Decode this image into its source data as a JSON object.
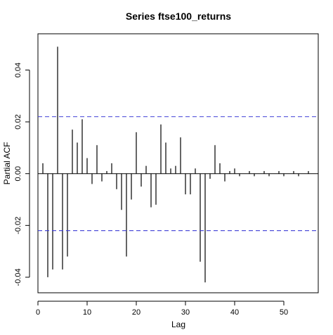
{
  "chart_data": {
    "type": "bar",
    "title": "Series  ftse100_returns",
    "xlabel": "Lag",
    "ylabel": "Partial ACF",
    "xlim": [
      0,
      57
    ],
    "ylim": [
      -0.046,
      0.054
    ],
    "x_ticks": [
      0,
      10,
      20,
      30,
      40,
      50
    ],
    "y_ticks": [
      -0.04,
      -0.02,
      0.0,
      0.02,
      0.04
    ],
    "y_tick_labels": [
      "-0.04",
      "-0.02",
      "0.00",
      "0.02",
      "0.04"
    ],
    "x": [
      1,
      2,
      3,
      4,
      5,
      6,
      7,
      8,
      9,
      10,
      11,
      12,
      13,
      14,
      15,
      16,
      17,
      18,
      19,
      20,
      21,
      22,
      23,
      24,
      25,
      26,
      27,
      28,
      29,
      30,
      31,
      32,
      33,
      34,
      35,
      36,
      37,
      38,
      39,
      40,
      41,
      42,
      43,
      44,
      45,
      46,
      47,
      48,
      49,
      50,
      51,
      52,
      53,
      54,
      55
    ],
    "values": [
      0.004,
      -0.04,
      -0.037,
      0.049,
      -0.037,
      -0.032,
      0.017,
      0.012,
      0.021,
      0.006,
      -0.004,
      0.011,
      -0.003,
      0.001,
      0.004,
      -0.006,
      -0.014,
      -0.032,
      -0.01,
      0.016,
      -0.005,
      0.003,
      -0.013,
      -0.012,
      0.019,
      0.012,
      0.002,
      0.003,
      0.014,
      -0.008,
      -0.008,
      0.002,
      -0.034,
      -0.042,
      -0.002,
      0.011,
      0.004,
      -0.003,
      0.001,
      0.002,
      -0.001,
      0.0,
      0.001,
      -0.001,
      0.0,
      0.001,
      -0.001,
      0.0,
      0.001,
      -0.001,
      0.0,
      0.001,
      -0.001,
      0.0,
      0.001
    ],
    "ci_upper": 0.022,
    "ci_lower": -0.022,
    "ci_color": "#3b3bd6",
    "grid": false
  }
}
